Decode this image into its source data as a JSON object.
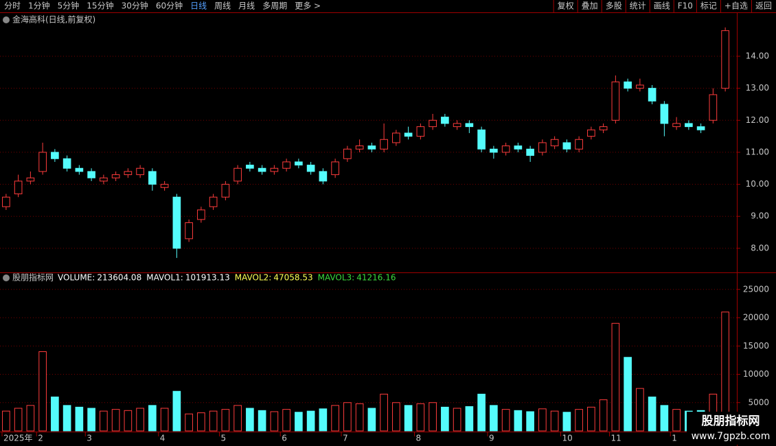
{
  "toolbar": {
    "left": [
      "分时",
      "1分钟",
      "5分钟",
      "15分钟",
      "30分钟",
      "60分钟",
      "日线",
      "周线",
      "月线",
      "多周期",
      "更多 >"
    ],
    "active_index": 6,
    "right": [
      "复权",
      "叠加",
      "多股",
      "统计",
      "画线",
      "F10",
      "标记",
      "+自选",
      "返回"
    ]
  },
  "chart_data": [
    {
      "type": "candlestick",
      "title": "金海高科(日线,前复权)",
      "categories": [
        "2025年",
        null,
        null,
        "2",
        null,
        null,
        null,
        "3",
        null,
        null,
        null,
        null,
        null,
        "4",
        null,
        null,
        null,
        null,
        "5",
        null,
        null,
        null,
        null,
        "6",
        null,
        null,
        null,
        null,
        "7",
        null,
        null,
        null,
        null,
        null,
        "8",
        null,
        null,
        null,
        null,
        null,
        "9",
        null,
        null,
        null,
        null,
        null,
        "10",
        null,
        null,
        null,
        "11",
        null,
        null,
        null,
        null,
        "1",
        null,
        null,
        null,
        null
      ],
      "open": [
        9.3,
        9.7,
        10.1,
        10.4,
        11.0,
        10.8,
        10.5,
        10.4,
        10.1,
        10.2,
        10.3,
        10.3,
        10.4,
        9.9,
        9.6,
        8.3,
        8.9,
        9.3,
        9.6,
        10.1,
        10.6,
        10.5,
        10.4,
        10.5,
        10.7,
        10.6,
        10.4,
        10.3,
        10.8,
        11.1,
        11.2,
        11.1,
        11.3,
        11.6,
        11.5,
        11.8,
        12.1,
        11.8,
        11.9,
        11.7,
        11.1,
        11.0,
        11.2,
        11.1,
        11.0,
        11.2,
        11.3,
        11.1,
        11.5,
        11.7,
        12.0,
        13.2,
        13.0,
        13.0,
        12.5,
        11.8,
        11.9,
        11.8,
        12.0,
        13.0
      ],
      "high": [
        9.7,
        10.3,
        10.4,
        11.3,
        11.1,
        10.9,
        10.6,
        10.5,
        10.3,
        10.4,
        10.5,
        10.6,
        10.5,
        10.1,
        9.7,
        8.9,
        9.3,
        9.7,
        10.1,
        10.6,
        10.7,
        10.6,
        10.6,
        10.8,
        10.8,
        10.7,
        10.5,
        10.8,
        11.2,
        11.4,
        11.3,
        11.9,
        11.7,
        11.8,
        11.9,
        12.2,
        12.2,
        12.0,
        12.0,
        11.8,
        11.2,
        11.3,
        11.3,
        11.2,
        11.4,
        11.5,
        11.4,
        11.5,
        11.8,
        11.9,
        13.4,
        13.3,
        13.3,
        13.1,
        12.6,
        12.1,
        12.0,
        11.9,
        13.0,
        14.9
      ],
      "low": [
        9.2,
        9.6,
        10.0,
        10.3,
        10.7,
        10.4,
        10.3,
        10.1,
        10.0,
        10.1,
        10.2,
        10.2,
        9.8,
        9.8,
        7.7,
        8.2,
        8.8,
        9.2,
        9.5,
        10.0,
        10.4,
        10.3,
        10.3,
        10.4,
        10.5,
        10.3,
        10.0,
        10.2,
        10.7,
        11.0,
        11.0,
        11.0,
        11.2,
        11.4,
        11.4,
        11.7,
        11.8,
        11.7,
        11.6,
        11.0,
        10.8,
        10.9,
        11.0,
        10.7,
        10.9,
        11.1,
        11.0,
        11.0,
        11.4,
        11.6,
        11.9,
        12.9,
        12.9,
        12.5,
        11.5,
        11.7,
        11.7,
        11.6,
        11.9,
        12.9
      ],
      "close": [
        9.6,
        10.1,
        10.2,
        11.0,
        10.8,
        10.5,
        10.4,
        10.2,
        10.2,
        10.3,
        10.4,
        10.5,
        10.0,
        10.0,
        8.0,
        8.8,
        9.2,
        9.6,
        10.0,
        10.5,
        10.5,
        10.4,
        10.5,
        10.7,
        10.6,
        10.4,
        10.1,
        10.7,
        11.1,
        11.2,
        11.1,
        11.4,
        11.6,
        11.5,
        11.8,
        12.0,
        11.9,
        11.9,
        11.8,
        11.1,
        11.0,
        11.2,
        11.1,
        10.9,
        11.3,
        11.4,
        11.1,
        11.4,
        11.7,
        11.8,
        13.2,
        13.0,
        13.1,
        12.6,
        11.9,
        11.9,
        11.8,
        11.7,
        12.8,
        14.8
      ],
      "up_color": "#ff3c3c",
      "down_color": "#54fcfc",
      "ylim": [
        7.29,
        14.9
      ],
      "yticks": [
        {
          "value": 8,
          "label": "8.00"
        },
        {
          "value": 9,
          "label": "9.00"
        },
        {
          "value": 10,
          "label": "10.00"
        },
        {
          "value": 11,
          "label": "11.00"
        },
        {
          "value": 12,
          "label": "12.00"
        },
        {
          "value": 13,
          "label": "13.00"
        },
        {
          "value": 14,
          "label": "14.00"
        }
      ],
      "grid": true
    },
    {
      "type": "bar",
      "title": "股朋指标网",
      "readout": [
        {
          "label": "VOLUME:",
          "value": 213604.08,
          "color": "#ffffff"
        },
        {
          "label": "MAVOL1:",
          "value": 101913.13,
          "color": "#ffffff"
        },
        {
          "label": "MAVOL2:",
          "value": 47058.53,
          "color": "#ffff54"
        },
        {
          "label": "MAVOL3:",
          "value": 41216.16,
          "color": "#3cdc3c"
        }
      ],
      "values": [
        3500,
        4000,
        4500,
        14000,
        6000,
        4500,
        4200,
        4000,
        3500,
        3800,
        3600,
        4000,
        4500,
        4000,
        7000,
        3000,
        3200,
        3500,
        3800,
        4500,
        4000,
        3600,
        3400,
        3800,
        3300,
        3500,
        3900,
        4500,
        5000,
        4800,
        4000,
        6500,
        5000,
        4500,
        4800,
        5000,
        4200,
        4000,
        4300,
        6500,
        4500,
        3800,
        3600,
        3400,
        3900,
        3500,
        3300,
        3800,
        4200,
        5500,
        19000,
        13000,
        7500,
        6000,
        4500,
        3800,
        3500,
        3600,
        6500,
        21000
      ],
      "up_color": "#ff3c3c",
      "down_color": "#54fcfc",
      "ylim": [
        0,
        28000
      ],
      "yticks": [
        5000,
        10000,
        15000,
        20000,
        25000
      ],
      "grid": true
    }
  ],
  "watermark": {
    "name": "股朋指标网",
    "url": "www.7gpzb.com"
  }
}
